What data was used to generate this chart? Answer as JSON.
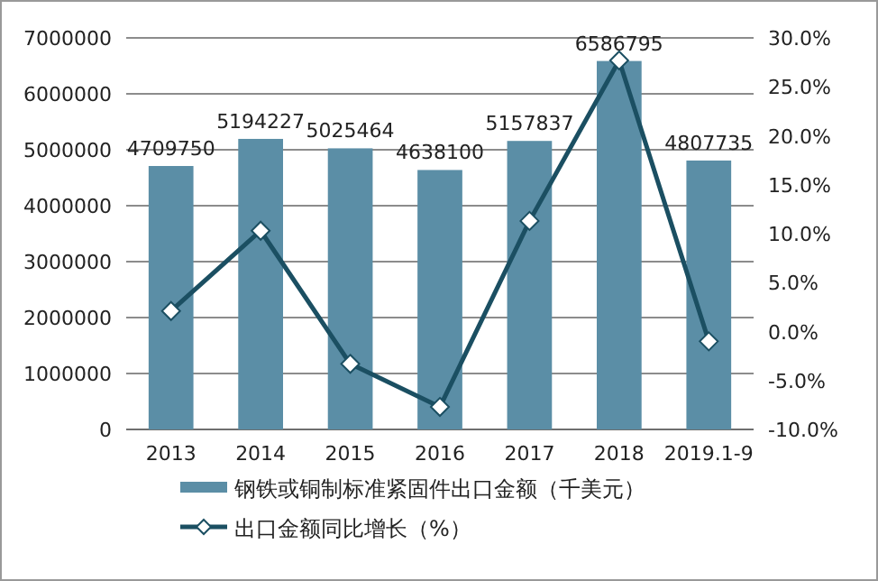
{
  "chart_data": {
    "type": "bar",
    "categories": [
      "2013",
      "2014",
      "2015",
      "2016",
      "2017",
      "2018",
      "2019.1-9"
    ],
    "series": [
      {
        "name": "钢铁或铜制标准紧固件出口金额（千美元）",
        "color": "#5b8ea6",
        "values": [
          4709750,
          5194227,
          5025464,
          4638100,
          5157837,
          6586795,
          4807735
        ]
      },
      {
        "name": "出口金额同比增长（%）",
        "type": "line",
        "axis": "y2",
        "color": "#1b4f62",
        "marker": "diamond",
        "values": [
          2.1,
          10.3,
          -3.3,
          -7.7,
          11.3,
          27.7,
          -1.0
        ]
      }
    ],
    "ylim": [
      0,
      7000000
    ],
    "yticks": [
      0,
      1000000,
      2000000,
      3000000,
      4000000,
      5000000,
      6000000,
      7000000
    ],
    "y2lim": [
      -10,
      30
    ],
    "y2ticks": [
      {
        "value": -10,
        "label": "-10.0%"
      },
      {
        "value": -5,
        "label": "-5.0%"
      },
      {
        "value": 0,
        "label": "0.0%"
      },
      {
        "value": 5,
        "label": "5.0%"
      },
      {
        "value": 10,
        "label": "10.0%"
      },
      {
        "value": 15,
        "label": "15.0%"
      },
      {
        "value": 20,
        "label": "20.0%"
      },
      {
        "value": 25,
        "label": "25.0%"
      },
      {
        "value": 30,
        "label": "30.0%"
      }
    ],
    "value_labels": [
      "4709750",
      "5194227",
      "5025464",
      "4638100",
      "5157837",
      "6586795",
      "4807735"
    ],
    "grid": "y",
    "legend": "bottom"
  }
}
